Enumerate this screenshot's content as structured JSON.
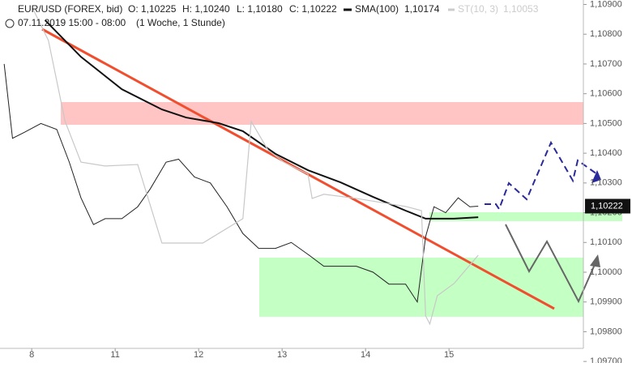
{
  "chart_data": {
    "type": "line",
    "title": "EUR/USD (FOREX, bid)",
    "ohlc": [
      "O: 1,10225",
      "H: 1,10240",
      "L: 1,10180",
      "C: 1,10222"
    ],
    "subtitle": "07.11.2019 15:00 - 08:00",
    "period": "(1 Woche, 1 Stunde)",
    "last_price": {
      "value": 1.10222,
      "label": "1,10222"
    },
    "xlim": [
      -0.38,
      6.61
    ],
    "xticks": [
      {
        "value": 0,
        "label": "8"
      },
      {
        "value": 1,
        "label": "11"
      },
      {
        "value": 2,
        "label": "12"
      },
      {
        "value": 3,
        "label": "13"
      },
      {
        "value": 4,
        "label": "14"
      },
      {
        "value": 5,
        "label": "15"
      }
    ],
    "ylim": [
      1.09695,
      1.10915
    ],
    "yticks": [
      {
        "value": 1.097,
        "label": "1,09700"
      },
      {
        "value": 1.098,
        "label": "1,09800"
      },
      {
        "value": 1.099,
        "label": "1,09900"
      },
      {
        "value": 1.1,
        "label": "1,10000"
      },
      {
        "value": 1.101,
        "label": "1,10100"
      },
      {
        "value": 1.102,
        "label": "1,10200"
      },
      {
        "value": 1.103,
        "label": "1,10300"
      },
      {
        "value": 1.104,
        "label": "1,10400"
      },
      {
        "value": 1.105,
        "label": "1,10500"
      },
      {
        "value": 1.106,
        "label": "1,10600"
      },
      {
        "value": 1.107,
        "label": "1,10700"
      },
      {
        "value": 1.108,
        "label": "1,10800"
      },
      {
        "value": 1.109,
        "label": "1,10900"
      }
    ],
    "series": [
      {
        "color": "#222222",
        "x": [
          -0.33,
          -0.23,
          -0.09,
          0.11,
          0.3,
          0.45,
          0.59,
          0.74,
          0.88,
          1.08,
          1.27,
          1.42,
          1.61,
          1.76,
          1.95,
          2.14,
          2.34,
          2.53,
          2.72,
          2.92,
          3.11,
          3.31,
          3.5,
          3.69,
          3.89,
          4.09,
          4.28,
          4.48,
          4.62,
          4.72,
          4.82,
          4.96,
          5.11,
          5.25,
          5.35
        ],
        "values": [
          1.107,
          1.1045,
          1.1047,
          1.105,
          1.1048,
          1.1037,
          1.1025,
          1.1016,
          1.1018,
          1.1018,
          1.1022,
          1.1028,
          1.1037,
          1.1038,
          1.1032,
          1.103,
          1.1022,
          1.1013,
          1.1008,
          1.1008,
          1.101,
          1.1006,
          1.1002,
          1.1002,
          1.1002,
          1.1,
          1.0996,
          1.0996,
          1.099,
          1.1012,
          1.1022,
          1.102,
          1.1025,
          1.1022,
          1.10222
        ]
      },
      {
        "name": "SMA(100)",
        "value_label": "1,10174",
        "color": "#111111",
        "x": [
          0.16,
          0.59,
          1.08,
          1.56,
          1.85,
          2.24,
          2.53,
          2.92,
          3.31,
          3.7,
          4.09,
          4.48,
          4.72,
          5.06,
          5.35
        ],
        "values": [
          1.10847,
          1.10724,
          1.10615,
          1.10547,
          1.1052,
          1.10501,
          1.10474,
          1.10398,
          1.10343,
          1.10302,
          1.10253,
          1.10207,
          1.1018,
          1.1018,
          1.10185
        ]
      },
      {
        "name": "ST(10, 3)",
        "value_label": "1,10053",
        "color": "#c8c8c8",
        "x": [
          0.01,
          0.2,
          0.4,
          0.59,
          0.88,
          1.27,
          1.56,
          2.05,
          2.53,
          2.63,
          2.83,
          3.02,
          3.31,
          3.36,
          3.5,
          3.89,
          4.48,
          4.67,
          4.72,
          4.77,
          4.86,
          5.06,
          5.35
        ],
        "values": [
          1.10888,
          1.10779,
          1.10507,
          1.1037,
          1.10357,
          1.10362,
          1.10098,
          1.10098,
          1.1018,
          1.10507,
          1.10411,
          1.1037,
          1.1033,
          1.10248,
          1.10262,
          1.10248,
          1.10221,
          1.10207,
          1.09853,
          1.09826,
          1.09921,
          1.09962,
          1.10057
        ]
      }
    ]
  }
}
